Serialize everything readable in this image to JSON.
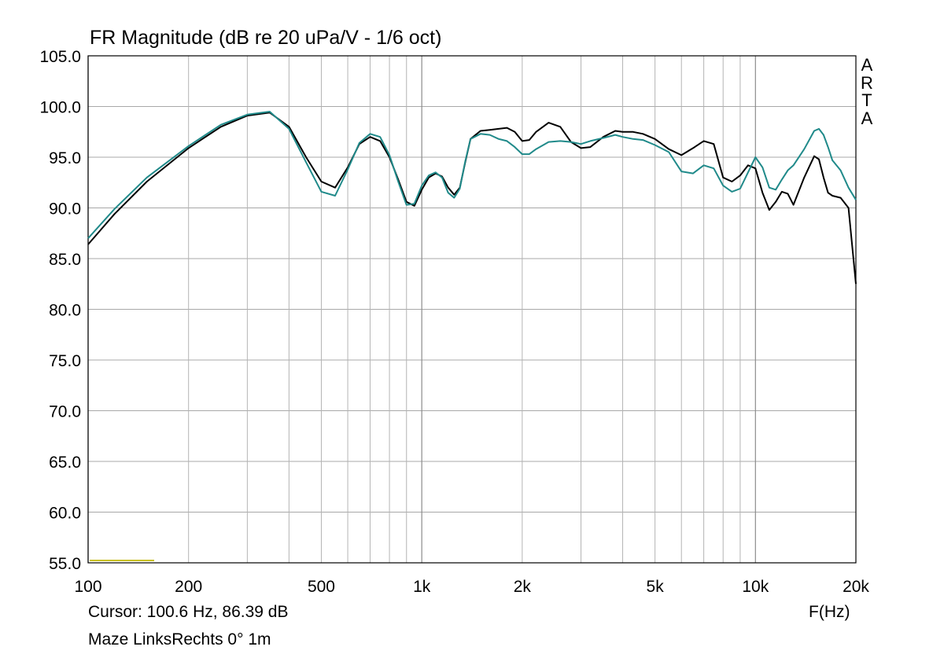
{
  "chart_data": {
    "type": "line",
    "title": "FR Magnitude (dB re 20 uPa/V - 1/6 oct)",
    "brand": "ARTA",
    "xlabel": "F(Hz)",
    "ylabel": "",
    "xscale": "log",
    "xlim": [
      100,
      20000
    ],
    "ylim": [
      55,
      105
    ],
    "y_ticks": [
      55,
      60,
      65,
      70,
      75,
      80,
      85,
      90,
      95,
      100,
      105
    ],
    "y_tick_labels": [
      "55.0",
      "60.0",
      "65.0",
      "70.0",
      "75.0",
      "80.0",
      "85.0",
      "90.0",
      "95.0",
      "100.0",
      "105.0"
    ],
    "x_tick_labels": [
      {
        "value": 100,
        "label": "100"
      },
      {
        "value": 200,
        "label": "200"
      },
      {
        "value": 500,
        "label": "500"
      },
      {
        "value": 1000,
        "label": "1k"
      },
      {
        "value": 2000,
        "label": "2k"
      },
      {
        "value": 5000,
        "label": "5k"
      },
      {
        "value": 10000,
        "label": "10k"
      },
      {
        "value": 20000,
        "label": "20k"
      }
    ],
    "grid": true,
    "cursor_text": "Cursor: 100.6 Hz, 86.39 dB",
    "footnote": "Maze LinksRechts 0° 1m",
    "series": [
      {
        "color": "#000000",
        "x": [
          100,
          120,
          150,
          200,
          250,
          300,
          350,
          400,
          450,
          500,
          550,
          600,
          650,
          700,
          750,
          800,
          850,
          900,
          950,
          1000,
          1050,
          1100,
          1150,
          1200,
          1250,
          1300,
          1350,
          1400,
          1500,
          1600,
          1700,
          1800,
          1900,
          2000,
          2100,
          2200,
          2400,
          2600,
          2800,
          3000,
          3200,
          3500,
          3800,
          4000,
          4300,
          4600,
          5000,
          5500,
          6000,
          6500,
          7000,
          7500,
          8000,
          8500,
          9000,
          9500,
          10000,
          10500,
          11000,
          11500,
          12000,
          12500,
          13000,
          14000,
          15000,
          15500,
          16000,
          16500,
          17000,
          18000,
          19000,
          20000
        ],
        "y": [
          86.4,
          89.4,
          92.6,
          95.9,
          98.0,
          99.1,
          99.4,
          98.0,
          95.0,
          92.6,
          92.0,
          94.0,
          96.3,
          97.0,
          96.6,
          95.0,
          92.8,
          90.6,
          90.2,
          91.8,
          93.0,
          93.4,
          93.1,
          92.0,
          91.3,
          92.0,
          94.5,
          96.8,
          97.6,
          97.7,
          97.8,
          97.9,
          97.5,
          96.6,
          96.7,
          97.5,
          98.4,
          98.0,
          96.5,
          95.9,
          96.0,
          97.0,
          97.6,
          97.5,
          97.5,
          97.3,
          96.8,
          95.8,
          95.2,
          95.9,
          96.6,
          96.3,
          93.0,
          92.6,
          93.2,
          94.2,
          93.9,
          91.5,
          89.8,
          90.6,
          91.6,
          91.4,
          90.3,
          93.0,
          95.1,
          94.8,
          93.0,
          91.5,
          91.2,
          91.0,
          90.0,
          82.5
        ]
      },
      {
        "color": "#208a8a",
        "x": [
          100,
          120,
          150,
          200,
          250,
          300,
          350,
          400,
          450,
          500,
          550,
          600,
          650,
          700,
          750,
          800,
          850,
          900,
          950,
          1000,
          1050,
          1100,
          1150,
          1200,
          1250,
          1300,
          1350,
          1400,
          1500,
          1600,
          1700,
          1800,
          1900,
          2000,
          2100,
          2200,
          2400,
          2600,
          2800,
          3000,
          3200,
          3500,
          3800,
          4000,
          4300,
          4600,
          5000,
          5500,
          6000,
          6500,
          7000,
          7500,
          8000,
          8500,
          9000,
          9500,
          10000,
          10500,
          11000,
          11500,
          12000,
          12500,
          13000,
          14000,
          15000,
          15500,
          16000,
          16500,
          17000,
          18000,
          19000,
          20000
        ],
        "y": [
          87.0,
          89.9,
          93.0,
          96.1,
          98.2,
          99.2,
          99.5,
          97.8,
          94.5,
          91.6,
          91.2,
          93.8,
          96.4,
          97.3,
          97.0,
          95.2,
          92.6,
          90.3,
          90.4,
          92.2,
          93.2,
          93.5,
          93.0,
          91.5,
          91.0,
          91.9,
          94.6,
          96.8,
          97.3,
          97.2,
          96.8,
          96.6,
          96.0,
          95.3,
          95.3,
          95.8,
          96.5,
          96.6,
          96.5,
          96.3,
          96.6,
          96.9,
          97.2,
          97.0,
          96.8,
          96.7,
          96.2,
          95.5,
          93.6,
          93.4,
          94.2,
          93.9,
          92.2,
          91.6,
          91.9,
          93.5,
          95.0,
          94.0,
          92.0,
          91.8,
          92.8,
          93.7,
          94.2,
          95.8,
          97.6,
          97.8,
          97.2,
          96.0,
          94.7,
          93.7,
          92.0,
          90.8
        ]
      }
    ]
  }
}
